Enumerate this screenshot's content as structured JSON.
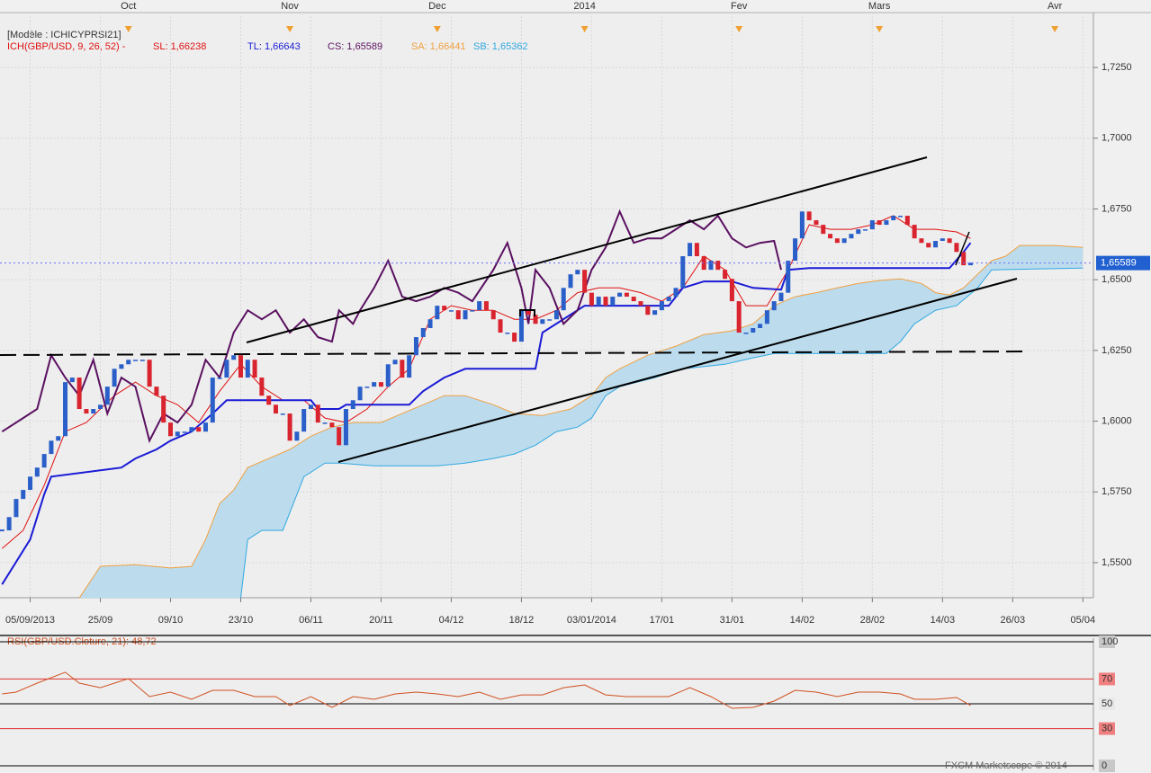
{
  "chart_data": [
    {
      "type": "candlestick",
      "title": "[Modèle : ICHICYPRSI21]",
      "subtitle": "ICH(GBP/USD, 9, 26, 52) -",
      "x": [
        0,
        1,
        2,
        3,
        4,
        5,
        6,
        7,
        8,
        9,
        10,
        11,
        12,
        13,
        14,
        15,
        16,
        17,
        18,
        19,
        20,
        21,
        22,
        23,
        24,
        25,
        26,
        27,
        28,
        29,
        30,
        31,
        32,
        33,
        34,
        35,
        36,
        37,
        38,
        39,
        40,
        41,
        42,
        43,
        44,
        45,
        46,
        47,
        48,
        49,
        50,
        51,
        52,
        53,
        54,
        55,
        56,
        57,
        58,
        59,
        60,
        61,
        62,
        63,
        64,
        65,
        66,
        67,
        68,
        69,
        70,
        71,
        72,
        73,
        74,
        75,
        76,
        77,
        78,
        79,
        80,
        81,
        82,
        83,
        84,
        85,
        86,
        87,
        88,
        89,
        90,
        91,
        92,
        93,
        94,
        95,
        96,
        97,
        98,
        99,
        100,
        101,
        102,
        103,
        104,
        105,
        106,
        107,
        108,
        109,
        110,
        111,
        112,
        113,
        114,
        115,
        116,
        117,
        118,
        119,
        120,
        121,
        122,
        123,
        124,
        125,
        126,
        127,
        128,
        129,
        130,
        131,
        132,
        133,
        134,
        135,
        136,
        137,
        138
      ],
      "values": [
        1.5614,
        1.5661,
        1.5725,
        1.5757,
        1.5804,
        1.5836,
        1.5884,
        1.5931,
        1.5947,
        1.6138,
        1.6154,
        1.6043,
        1.6027,
        1.6043,
        1.6058,
        1.6122,
        1.6185,
        1.6201,
        1.6217,
        1.6217,
        1.6217,
        1.6122,
        1.609,
        1.5995,
        1.5947,
        1.5963,
        1.5963,
        1.5979,
        1.5963,
        1.5995,
        1.6154,
        1.6154,
        1.6217,
        1.6233,
        1.6154,
        1.6217,
        1.6154,
        1.609,
        1.6058,
        1.6027,
        1.6027,
        1.5931,
        1.5963,
        1.6043,
        1.6058,
        1.5995,
        1.5995,
        1.5979,
        1.5915,
        1.6043,
        1.6074,
        1.6122,
        1.6122,
        1.6138,
        1.6122,
        1.6201,
        1.6217,
        1.6154,
        1.6233,
        1.6297,
        1.6329,
        1.636,
        1.6408,
        1.6392,
        1.6392,
        1.636,
        1.6392,
        1.6392,
        1.6424,
        1.6392,
        1.636,
        1.6313,
        1.6313,
        1.6281,
        1.6392,
        1.6376,
        1.6344,
        1.636,
        1.636,
        1.6392,
        1.6471,
        1.6519,
        1.6535,
        1.6454,
        1.6408,
        1.644,
        1.6408,
        1.644,
        1.6454,
        1.644,
        1.6424,
        1.6408,
        1.6376,
        1.6392,
        1.6424,
        1.644,
        1.6471,
        1.6583,
        1.663,
        1.6583,
        1.6535,
        1.6567,
        1.6535,
        1.6503,
        1.6424,
        1.6313,
        1.6313,
        1.6329,
        1.6344,
        1.6392,
        1.6424,
        1.6454,
        1.6567,
        1.6646,
        1.6741,
        1.671,
        1.6694,
        1.6662,
        1.6646,
        1.663,
        1.6646,
        1.6662,
        1.6678,
        1.6678,
        1.671,
        1.6694,
        1.671,
        1.6726,
        1.6726,
        1.6694,
        1.6646,
        1.663,
        1.6614,
        1.6637,
        1.6646,
        1.663,
        1.6598,
        1.6551,
        1.656
      ],
      "up_color": "#2a5fc9",
      "down_color": "#d9232e",
      "cloud_color": "#bcdcee",
      "series": [
        {
          "name": "SL: 1,66238",
          "color": "#e01010",
          "x": [
            0,
            3,
            6,
            9,
            12,
            16,
            19,
            22,
            25,
            28,
            31,
            34,
            37,
            40,
            43,
            46,
            49,
            52,
            55,
            58,
            61,
            64,
            67,
            70,
            73,
            76,
            79,
            82,
            85,
            88,
            91,
            94,
            97,
            100,
            103,
            106,
            109,
            112,
            115,
            118,
            121,
            124,
            127,
            130,
            133,
            136,
            138
          ],
          "values": [
            1.555,
            1.5614,
            1.5773,
            1.5963,
            1.5995,
            1.609,
            1.6138,
            1.609,
            1.6058,
            1.5995,
            1.6106,
            1.6201,
            1.6122,
            1.6074,
            1.6074,
            1.6011,
            1.5995,
            1.6043,
            1.6122,
            1.6185,
            1.636,
            1.6408,
            1.6392,
            1.6392,
            1.636,
            1.636,
            1.6392,
            1.6454,
            1.6471,
            1.6471,
            1.6454,
            1.6424,
            1.6471,
            1.6583,
            1.6535,
            1.6408,
            1.6408,
            1.6535,
            1.6694,
            1.6678,
            1.6678,
            1.6694,
            1.6726,
            1.6678,
            1.6678,
            1.6669,
            1.6646
          ]
        },
        {
          "name": "TL: 1,66643",
          "color": "#1a1ad6",
          "x": [
            0,
            4,
            6,
            7,
            17,
            19,
            22,
            24,
            27,
            30,
            32,
            44,
            45,
            48,
            49,
            58,
            60,
            63,
            66,
            76,
            77,
            83,
            95,
            97,
            100,
            104,
            107,
            111,
            112,
            115,
            135,
            137,
            138
          ],
          "values": [
            1.5423,
            1.5582,
            1.5741,
            1.5804,
            1.5836,
            1.5868,
            1.59,
            1.5931,
            1.5963,
            1.6027,
            1.6074,
            1.6074,
            1.6043,
            1.6043,
            1.6058,
            1.6058,
            1.6106,
            1.6154,
            1.6185,
            1.6185,
            1.6313,
            1.6408,
            1.6408,
            1.6471,
            1.6494,
            1.6494,
            1.6471,
            1.6465,
            1.6535,
            1.6541,
            1.6541,
            1.6598,
            1.663
          ]
        },
        {
          "name": "CS: 1,65589",
          "color": "#5a1060",
          "x": [
            0,
            3,
            5,
            7,
            9,
            11,
            13,
            15,
            17,
            19,
            21,
            23,
            25,
            27,
            29,
            31,
            33,
            35,
            37,
            39,
            41,
            43,
            45,
            47,
            48,
            50,
            51,
            53,
            55,
            57,
            59,
            61,
            63,
            65,
            67,
            70,
            72,
            74,
            75,
            76,
            78,
            80,
            82,
            84,
            86,
            88,
            90,
            92,
            94,
            96,
            98,
            100,
            102,
            104,
            106,
            108,
            110,
            111
          ],
          "values": [
            1.5963,
            1.6011,
            1.6043,
            1.6233,
            1.6154,
            1.609,
            1.6217,
            1.6027,
            1.6154,
            1.6122,
            1.5931,
            1.6027,
            1.5995,
            1.6058,
            1.6217,
            1.6154,
            1.6313,
            1.6392,
            1.636,
            1.6392,
            1.6313,
            1.636,
            1.6297,
            1.6281,
            1.6392,
            1.6344,
            1.6392,
            1.6471,
            1.6567,
            1.644,
            1.6424,
            1.644,
            1.6471,
            1.6454,
            1.6424,
            1.6535,
            1.663,
            1.6471,
            1.6344,
            1.6535,
            1.6471,
            1.6344,
            1.6392,
            1.6535,
            1.6614,
            1.6741,
            1.663,
            1.6646,
            1.6646,
            1.6678,
            1.671,
            1.6678,
            1.6726,
            1.6646,
            1.6614,
            1.663,
            1.6637,
            1.6535
          ]
        },
        {
          "name": "SA: 1,66441",
          "color": "#f0a040",
          "x": [
            11,
            14,
            19,
            24,
            27,
            29,
            31,
            33,
            35,
            38,
            41,
            44,
            47,
            50,
            54,
            57,
            60,
            63,
            66,
            70,
            73,
            77,
            81,
            84,
            86,
            88,
            92,
            96,
            100,
            104,
            107,
            110,
            113,
            116,
            119,
            122,
            125,
            128,
            131,
            133,
            135,
            137,
            139,
            141,
            143,
            145,
            150,
            154
          ],
          "values": [
            1.5375,
            1.5487,
            1.5493,
            1.5481,
            1.5487,
            1.5582,
            1.5709,
            1.5757,
            1.5836,
            1.5868,
            1.59,
            1.5947,
            1.5979,
            1.5995,
            1.5995,
            1.6027,
            1.6058,
            1.609,
            1.609,
            1.6058,
            1.6027,
            1.602,
            1.6043,
            1.609,
            1.6154,
            1.6185,
            1.6233,
            1.6265,
            1.6306,
            1.6319,
            1.6344,
            1.6408,
            1.644,
            1.6454,
            1.6471,
            1.6487,
            1.6497,
            1.6503,
            1.6487,
            1.6454,
            1.6446,
            1.6471,
            1.6519,
            1.6567,
            1.6583,
            1.6621,
            1.6621,
            1.6614
          ]
        },
        {
          "name": "SB: 1,65362",
          "color": "#30a8e0",
          "x": [
            34,
            35,
            37,
            40,
            43,
            46,
            48,
            53,
            62,
            66,
            70,
            73,
            76,
            79,
            82,
            84,
            86,
            88,
            93,
            97,
            103,
            107,
            110,
            126,
            128,
            130,
            133,
            136,
            139,
            141,
            154
          ],
          "values": [
            1.5375,
            1.5582,
            1.5614,
            1.5614,
            1.5804,
            1.5852,
            1.5852,
            1.5842,
            1.5842,
            1.5852,
            1.5868,
            1.5884,
            1.5915,
            1.5963,
            1.5979,
            1.6011,
            1.609,
            1.6122,
            1.6154,
            1.6185,
            1.6201,
            1.6224,
            1.6239,
            1.6239,
            1.6281,
            1.6344,
            1.6392,
            1.6408,
            1.6471,
            1.6535,
            1.6541
          ]
        }
      ],
      "xlim": [
        -0.3,
        155.5
      ],
      "xticks": [
        {
          "value": 4,
          "label": "05/09/2013"
        },
        {
          "value": 14,
          "label": "25/09"
        },
        {
          "value": 24,
          "label": "09/10"
        },
        {
          "value": 34,
          "label": "23/10"
        },
        {
          "value": 44,
          "label": "06/11"
        },
        {
          "value": 54,
          "label": "20/11"
        },
        {
          "value": 64,
          "label": "04/12"
        },
        {
          "value": 74,
          "label": "18/12"
        },
        {
          "value": 84,
          "label": "03/01/2014"
        },
        {
          "value": 94,
          "label": "17/01"
        },
        {
          "value": 104,
          "label": "31/01"
        },
        {
          "value": 114,
          "label": "14/02"
        },
        {
          "value": 124,
          "label": "28/02"
        },
        {
          "value": 134,
          "label": "14/03"
        },
        {
          "value": 144,
          "label": "26/03"
        },
        {
          "value": 154,
          "label": "05/04"
        }
      ],
      "top_ticks": [
        {
          "value": 18,
          "label": "Oct"
        },
        {
          "value": 41,
          "label": "Nov"
        },
        {
          "value": 62,
          "label": "Dec"
        },
        {
          "value": 83,
          "label": "2014"
        },
        {
          "value": 105,
          "label": "Fev"
        },
        {
          "value": 125,
          "label": "Mars"
        },
        {
          "value": 150,
          "label": "Avr"
        }
      ],
      "ylim": [
        1.5376,
        1.7444
      ],
      "yticks": [
        {
          "value": 1.55,
          "label": "1,5500"
        },
        {
          "value": 1.575,
          "label": "1,5750"
        },
        {
          "value": 1.6,
          "label": "1,6000"
        },
        {
          "value": 1.625,
          "label": "1,6250"
        },
        {
          "value": 1.65,
          "label": "1,6500"
        },
        {
          "value": 1.675,
          "label": "1,6750"
        },
        {
          "value": 1.7,
          "label": "1,7000"
        },
        {
          "value": 1.725,
          "label": "1,7250"
        }
      ],
      "last_price": {
        "value": 1.65589,
        "label": "1,65589"
      },
      "grid": true
    },
    {
      "type": "line",
      "title": "RSI(GBP/USD.Cloture, 21): 48,72",
      "color": "#d05020",
      "x": [
        0,
        2,
        5,
        9,
        11,
        14,
        18,
        21,
        24,
        27,
        30,
        33,
        36,
        39,
        41,
        44,
        47,
        50,
        53,
        56,
        59,
        62,
        65,
        68,
        71,
        74,
        77,
        80,
        83,
        86,
        89,
        92,
        95,
        98,
        101,
        104,
        107,
        110,
        113,
        116,
        119,
        122,
        125,
        128,
        130,
        133,
        136,
        138
      ],
      "values": [
        58,
        59.4,
        66.7,
        75.4,
        66.7,
        63,
        70.3,
        55.8,
        59.4,
        53.6,
        60.9,
        60.9,
        55.8,
        55.8,
        48.6,
        55.8,
        47.1,
        55.8,
        53.6,
        58,
        59.4,
        58,
        55.8,
        59.4,
        53.6,
        57.2,
        57.2,
        63,
        65.2,
        57.2,
        55.8,
        55.8,
        55.8,
        63,
        55.8,
        46.4,
        47.1,
        52.2,
        60.9,
        59.4,
        55.8,
        59.4,
        59.4,
        58,
        53.6,
        53.6,
        55.1,
        48.7
      ],
      "xlim": [
        -0.3,
        155.5
      ],
      "ylim": [
        0,
        100
      ],
      "yticks": [
        0,
        30,
        50,
        70,
        100
      ],
      "level_colors": [
        "#000000",
        "#e03030",
        "#000000",
        "#e03030",
        "#000000"
      ],
      "label_colors": [
        "#c8c8c8",
        "#f08080",
        "#e8e8e8",
        "#f08080",
        "#c8c8c8"
      ],
      "watermark": "FXCM Marketscope © 2014"
    }
  ]
}
